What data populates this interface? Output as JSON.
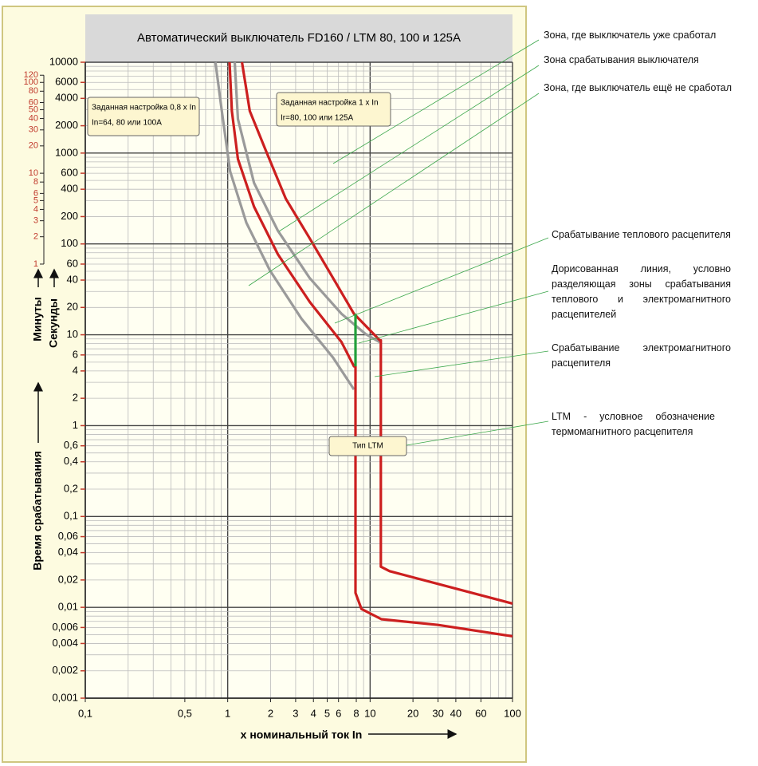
{
  "chart_data": {
    "type": "line",
    "title": "Автоматический выключатель FD160 / LTM 80, 100 и 125A",
    "xlabel": "x номинальный ток In",
    "ylabel_minutes": "Минуты",
    "ylabel_seconds": "Секунды",
    "ylabel": "Время срабатывания",
    "log_x": true,
    "log_y": true,
    "grid": true,
    "xlim": [
      0.1,
      100
    ],
    "xticks": [
      {
        "value": 0.1,
        "label": "0,1"
      },
      {
        "value": 0.5,
        "label": "0,5"
      },
      1,
      2,
      3,
      4,
      5,
      6,
      8,
      10,
      20,
      30,
      40,
      60,
      100
    ],
    "ylim": [
      0.001,
      10000
    ],
    "yticks": [
      10000,
      6000,
      4000,
      2000,
      1000,
      600,
      400,
      200,
      100,
      60,
      40,
      20,
      10,
      6,
      4,
      2,
      1,
      {
        "value": 0.6,
        "label": "0,6"
      },
      {
        "value": 0.4,
        "label": "0,4"
      },
      {
        "value": 0.2,
        "label": "0,2"
      },
      {
        "value": 0.1,
        "label": "0,1"
      },
      {
        "value": 0.06,
        "label": "0,06"
      },
      {
        "value": 0.04,
        "label": "0,04"
      },
      {
        "value": 0.02,
        "label": "0,02"
      },
      {
        "value": 0.01,
        "label": "0,01"
      },
      {
        "value": 0.006,
        "label": "0,006"
      },
      {
        "value": 0.004,
        "label": "0,004"
      },
      {
        "value": 0.002,
        "label": "0,002"
      },
      {
        "value": 0.001,
        "label": "0,001"
      }
    ],
    "minute_ticks": [
      {
        "value": 7200,
        "label": "120"
      },
      {
        "value": 6000,
        "label": "100"
      },
      {
        "value": 4800,
        "label": "80"
      },
      {
        "value": 3600,
        "label": "60"
      },
      {
        "value": 3000,
        "label": "50"
      },
      {
        "value": 2400,
        "label": "40"
      },
      {
        "value": 1800,
        "label": "30"
      },
      {
        "value": 1200,
        "label": "20"
      },
      {
        "value": 600,
        "label": "10"
      },
      {
        "value": 480,
        "label": "8"
      },
      {
        "value": 360,
        "label": "6"
      },
      {
        "value": 300,
        "label": "5"
      },
      {
        "value": 240,
        "label": "4"
      },
      {
        "value": 180,
        "label": "3"
      },
      {
        "value": 120,
        "label": "2"
      },
      {
        "value": 60,
        "label": "1"
      }
    ],
    "minute_tick_color": "#c0392b",
    "series": [
      {
        "color": "#9a9a9a",
        "x": [
          0.82,
          0.91,
          1.04,
          1.35,
          1.98,
          3.3,
          5.5,
          7.7
        ],
        "values": [
          10000,
          2900,
          630,
          172,
          51,
          15,
          5.6,
          2.5
        ]
      },
      {
        "color": "#9a9a9a",
        "x": [
          1.12,
          1.18,
          1.53,
          2.25,
          3.77,
          6.3,
          9.3,
          11.7
        ],
        "values": [
          10000,
          2370,
          470,
          140,
          42,
          17,
          10.2,
          8.3
        ]
      },
      {
        "color": "#cc1f1f",
        "x": [
          1.03,
          1.07,
          1.18,
          1.53,
          2.25,
          3.77,
          6.3,
          7.7,
          7.9,
          7.9,
          8.7,
          12,
          30,
          100
        ],
        "values": [
          10000,
          2900,
          860,
          257,
          77,
          23,
          8.3,
          4.5,
          4.5,
          0.0144,
          0.0096,
          0.0074,
          0.0064,
          0.0048
        ]
      },
      {
        "color": "#cc1f1f",
        "x": [
          1.26,
          1.43,
          1.86,
          2.56,
          3.77,
          5.5,
          7.7,
          11.7,
          11.9,
          11.9,
          13.7,
          100
        ],
        "values": [
          10000,
          2900,
          1050,
          314,
          115,
          42,
          17,
          8.7,
          8.7,
          0.028,
          0.025,
          0.011
        ]
      },
      {
        "color": "#22a03a",
        "x": [
          7.9,
          7.9
        ],
        "values": [
          17,
          4.5
        ]
      }
    ],
    "boxes": [
      [
        "Заданная настройка 0,8 x In",
        "In=64, 80 или 100A"
      ],
      [
        "Заданная настройка 1 x In",
        "Ir=80, 100 или 125A"
      ],
      [
        "Тип LTM"
      ]
    ],
    "annotations": [
      "Зона, где выключатель уже сработал",
      "Зона срабатывания выключателя",
      "Зона, где выключатель ещё не сработал",
      "Срабатывание теплового расцепителя",
      "Дорисованная линия, условно разделяющая зоны срабатывания теплового и электромагнитного расцепителей",
      "Срабатывание электромагнитного расцепителя",
      "LTM - условное обозначение термомагнитного расцепителя"
    ]
  }
}
